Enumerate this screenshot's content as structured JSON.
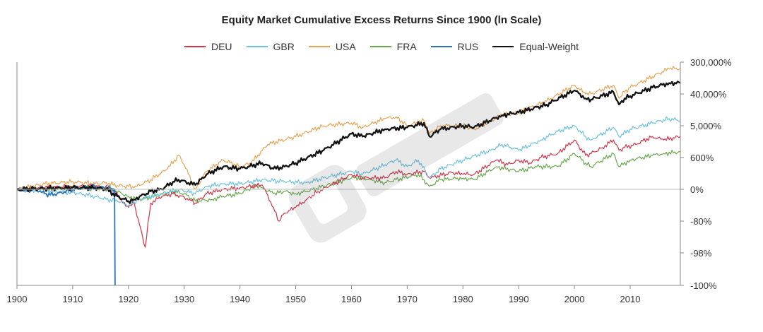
{
  "chart_data": {
    "type": "line",
    "title": "Equity Market Cumulative Excess Returns Since 1900 (ln Scale)",
    "xlabel": "",
    "ylabel": "",
    "xlim": [
      1900,
      2019
    ],
    "x_ticks": [
      "1900",
      "1910",
      "1920",
      "1930",
      "1940",
      "1950",
      "1960",
      "1970",
      "1980",
      "1990",
      "2000",
      "2010"
    ],
    "y_scale": "log",
    "y_ticks": [
      {
        "label": "300,000%",
        "value": 300000
      },
      {
        "label": "40,000%",
        "value": 40000
      },
      {
        "label": "5,000%",
        "value": 5000
      },
      {
        "label": "600%",
        "value": 600
      },
      {
        "label": "0%",
        "value": 0
      },
      {
        "label": "-80%",
        "value": -80
      },
      {
        "label": "-98%",
        "value": -98
      },
      {
        "label": "-100%",
        "value": -100
      }
    ],
    "reference_line": 0,
    "legend_position": "top-center",
    "grid": false,
    "series": [
      {
        "name": "DEU",
        "color": "#d0354a",
        "width": 1.2,
        "x": [
          1900,
          1905,
          1910,
          1914,
          1917,
          1918,
          1919,
          1920,
          1921,
          1922,
          1923,
          1924,
          1926,
          1928,
          1931,
          1932,
          1934,
          1937,
          1940,
          1944,
          1946,
          1947,
          1948,
          1950,
          1952,
          1954,
          1956,
          1960,
          1962,
          1966,
          1968,
          1970,
          1973,
          1974,
          1978,
          1980,
          1982,
          1986,
          1988,
          1990,
          1992,
          1994,
          1997,
          2000,
          2002,
          2003,
          2005,
          2007,
          2008,
          2009,
          2011,
          2014,
          2016,
          2019
        ],
        "y": [
          0,
          10,
          20,
          20,
          5,
          -20,
          -50,
          -60,
          -50,
          -85,
          -97,
          -50,
          -30,
          -20,
          -40,
          -50,
          -20,
          0,
          10,
          30,
          -60,
          -80,
          -70,
          -60,
          -40,
          -10,
          20,
          150,
          100,
          100,
          200,
          150,
          200,
          100,
          180,
          150,
          150,
          500,
          350,
          500,
          400,
          600,
          800,
          2000,
          700,
          800,
          1200,
          2000,
          1000,
          1200,
          1500,
          2500,
          2000,
          2500
        ]
      },
      {
        "name": "GBR",
        "color": "#6ec2e0",
        "width": 1.2,
        "x": [
          1900,
          1905,
          1910,
          1914,
          1916,
          1918,
          1920,
          1922,
          1926,
          1929,
          1932,
          1934,
          1937,
          1940,
          1944,
          1948,
          1952,
          1955,
          1960,
          1962,
          1968,
          1970,
          1972,
          1974,
          1976,
          1980,
          1985,
          1987,
          1990,
          1994,
          1997,
          2000,
          2002,
          2003,
          2007,
          2008,
          2010,
          2014,
          2017,
          2019
        ],
        "y": [
          0,
          -10,
          -15,
          -30,
          -40,
          -45,
          -55,
          -40,
          -20,
          0,
          -20,
          20,
          40,
          40,
          80,
          60,
          50,
          100,
          200,
          150,
          500,
          300,
          500,
          100,
          250,
          500,
          1000,
          1500,
          1000,
          2000,
          3500,
          5000,
          2500,
          2000,
          4500,
          2500,
          4000,
          6000,
          8000,
          7000
        ]
      },
      {
        "name": "USA",
        "color": "#e8a455",
        "width": 1.2,
        "x": [
          1900,
          1905,
          1910,
          1914,
          1916,
          1918,
          1920,
          1921,
          1924,
          1927,
          1929,
          1930,
          1932,
          1934,
          1937,
          1940,
          1942,
          1945,
          1950,
          1955,
          1960,
          1962,
          1966,
          1968,
          1970,
          1973,
          1974,
          1976,
          1980,
          1982,
          1987,
          1990,
          1995,
          2000,
          2002,
          2003,
          2007,
          2008,
          2009,
          2010,
          2014,
          2017,
          2019
        ],
        "y": [
          0,
          40,
          60,
          40,
          50,
          25,
          20,
          10,
          80,
          250,
          700,
          350,
          0,
          200,
          500,
          300,
          400,
          1500,
          2500,
          5000,
          6000,
          4500,
          8000,
          9000,
          5000,
          7000,
          3000,
          5000,
          5000,
          4000,
          10000,
          12000,
          25000,
          70000,
          40000,
          40000,
          70000,
          30000,
          45000,
          60000,
          120000,
          200000,
          200000
        ]
      },
      {
        "name": "FRA",
        "color": "#6aa84f",
        "width": 1.2,
        "x": [
          1900,
          1905,
          1910,
          1914,
          1917,
          1920,
          1922,
          1925,
          1928,
          1930,
          1932,
          1935,
          1937,
          1940,
          1943,
          1944,
          1946,
          1948,
          1950,
          1952,
          1955,
          1960,
          1962,
          1966,
          1968,
          1972,
          1974,
          1976,
          1980,
          1982,
          1986,
          1990,
          1993,
          1997,
          2000,
          2002,
          2003,
          2007,
          2008,
          2010,
          2014,
          2016,
          2019
        ],
        "y": [
          0,
          5,
          10,
          5,
          0,
          -30,
          -40,
          -30,
          -10,
          -20,
          -45,
          -40,
          -30,
          -20,
          30,
          10,
          -20,
          -10,
          -20,
          -10,
          20,
          100,
          100,
          50,
          80,
          150,
          20,
          80,
          100,
          80,
          300,
          200,
          300,
          300,
          800,
          400,
          300,
          800,
          300,
          500,
          700,
          800,
          900
        ]
      },
      {
        "name": "RUS",
        "color": "#2e75b6",
        "width": 1.8,
        "x": [
          1900,
          1902,
          1903,
          1904,
          1905,
          1906,
          1908,
          1910,
          1912,
          1914,
          1916,
          1917,
          1917.5,
          1917.6
        ],
        "y": [
          0,
          -5,
          5,
          -10,
          -20,
          -25,
          -15,
          0,
          10,
          15,
          10,
          5,
          0,
          -100
        ]
      },
      {
        "name": "Equal-Weight",
        "color": "#111111",
        "width": 2.3,
        "x": [
          1900,
          1905,
          1910,
          1914,
          1916,
          1918,
          1920,
          1921,
          1924,
          1926,
          1928,
          1929,
          1932,
          1934,
          1937,
          1940,
          1944,
          1946,
          1948,
          1950,
          1955,
          1960,
          1962,
          1966,
          1970,
          1973,
          1974,
          1976,
          1980,
          1982,
          1987,
          1990,
          1995,
          2000,
          2002,
          2003,
          2007,
          2008,
          2009,
          2010,
          2014,
          2017,
          2019
        ],
        "y": [
          0,
          5,
          10,
          10,
          0,
          -30,
          -45,
          -40,
          -10,
          0,
          60,
          80,
          30,
          150,
          300,
          250,
          400,
          250,
          300,
          400,
          1000,
          3000,
          2500,
          4000,
          4500,
          6000,
          2500,
          4000,
          5000,
          4500,
          10000,
          12000,
          20000,
          50000,
          30000,
          28000,
          45000,
          20000,
          30000,
          35000,
          60000,
          80000,
          80000
        ]
      }
    ]
  }
}
